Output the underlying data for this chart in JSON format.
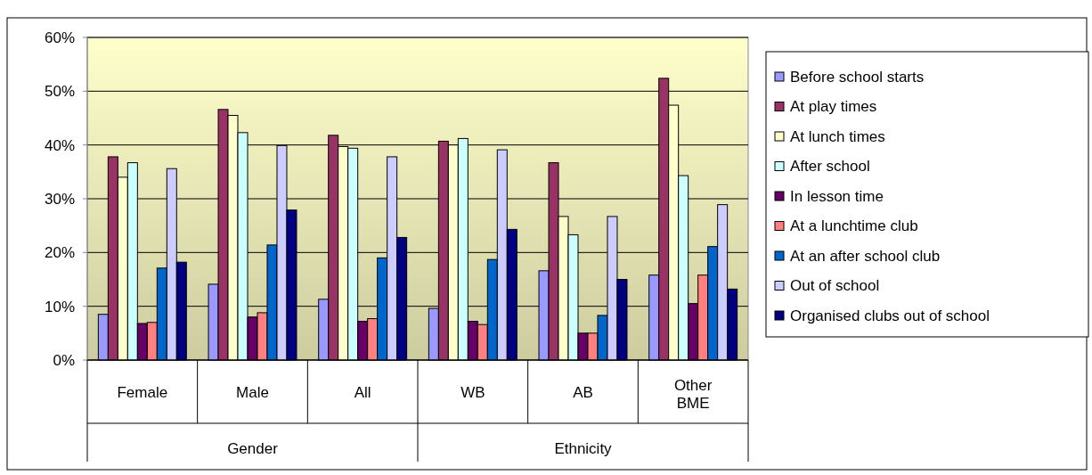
{
  "chart_data": {
    "type": "bar",
    "categories": [
      "Female",
      "Male",
      "All",
      "WB",
      "AB",
      "Other BME"
    ],
    "annotations": [
      "Gender",
      "Ethnicity"
    ],
    "ylim": [
      0,
      60
    ],
    "yticks": [
      {
        "value": 0,
        "label": "0%"
      },
      {
        "value": 10,
        "label": "10%"
      },
      {
        "value": 20,
        "label": "20%"
      },
      {
        "value": 30,
        "label": "30%"
      },
      {
        "value": 40,
        "label": "40%"
      },
      {
        "value": 50,
        "label": "50%"
      },
      {
        "value": 60,
        "label": "60%"
      }
    ],
    "grid": "y",
    "legend": "right",
    "series": [
      {
        "name": "Before school starts",
        "color": "#9999ff",
        "values": [
          8.5,
          14.1,
          11.3,
          9.6,
          16.6,
          15.8
        ]
      },
      {
        "name": "At play times",
        "color": "#993366",
        "values": [
          37.8,
          46.6,
          41.8,
          40.7,
          36.7,
          52.4
        ]
      },
      {
        "name": "At lunch times",
        "color": "#ffffcc",
        "values": [
          34,
          45.5,
          39.7,
          40,
          26.7,
          47.4
        ]
      },
      {
        "name": "After school",
        "color": "#ccffff",
        "values": [
          36.7,
          42.3,
          39.4,
          41.2,
          23.3,
          34.3
        ]
      },
      {
        "name": "In lesson time",
        "color": "#660066",
        "values": [
          6.8,
          8,
          7.2,
          7.2,
          5,
          10.5
        ]
      },
      {
        "name": "At a lunchtime club",
        "color": "#ff8080",
        "values": [
          7,
          8.8,
          7.7,
          6.6,
          5,
          15.8
        ]
      },
      {
        "name": "At an after school club",
        "color": "#0066cc",
        "values": [
          17.1,
          21.4,
          19,
          18.7,
          8.3,
          21.1
        ]
      },
      {
        "name": "Out of school",
        "color": "#ccccff",
        "values": [
          35.6,
          39.9,
          37.8,
          39.1,
          26.7,
          28.9
        ]
      },
      {
        "name": "Organised clubs out of school",
        "color": "#000080",
        "values": [
          18.2,
          27.9,
          22.8,
          24.3,
          15,
          13.2
        ]
      }
    ]
  }
}
